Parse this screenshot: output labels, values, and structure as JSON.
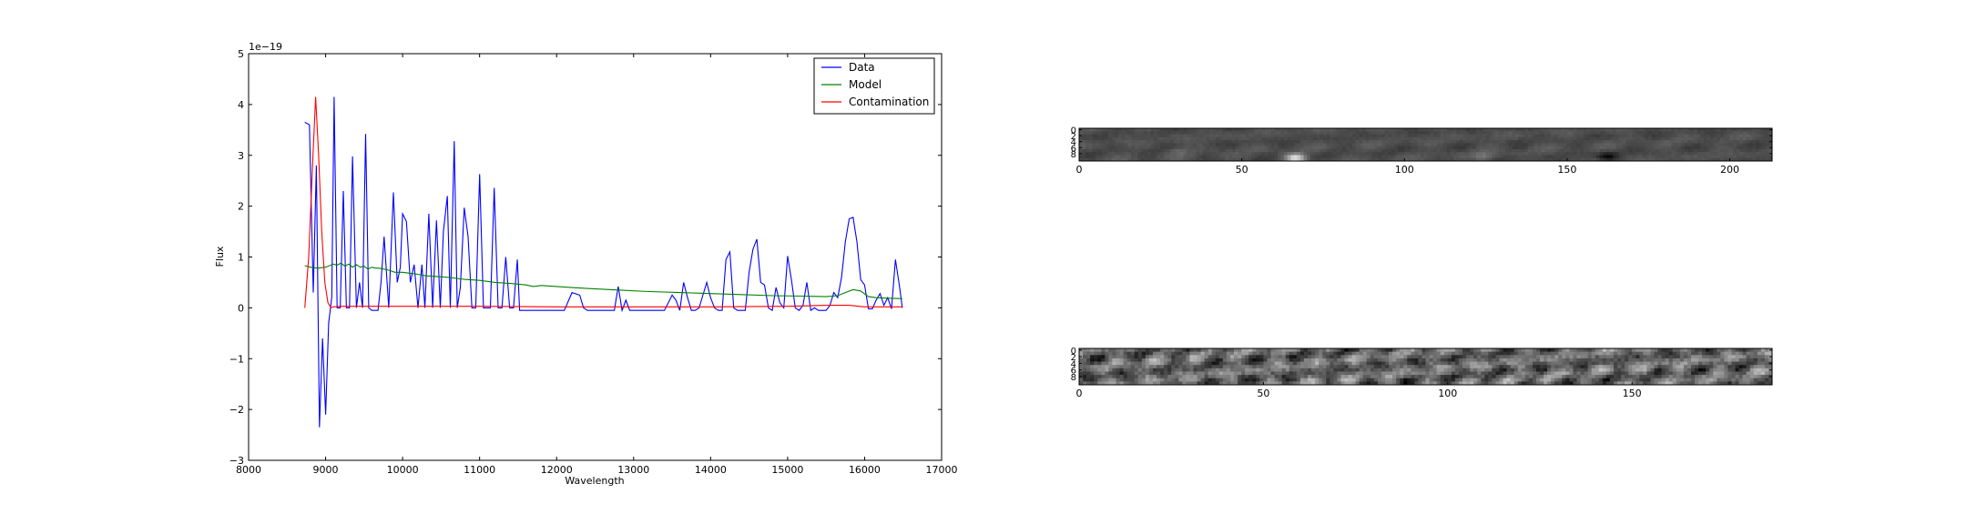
{
  "chart_data": [
    {
      "type": "line",
      "xlabel": "Wavelength",
      "ylabel": "Flux",
      "y_offset_label": "1e−19",
      "xlim": [
        8000,
        17000
      ],
      "ylim": [
        -3,
        5
      ],
      "xticks": [
        8000,
        9000,
        10000,
        11000,
        12000,
        13000,
        14000,
        15000,
        16000,
        17000
      ],
      "xtick_labels": [
        "8000",
        "9000",
        "10000",
        "11000",
        "12000",
        "13000",
        "14000",
        "15000",
        "16000",
        "17000"
      ],
      "yticks": [
        -3,
        -2,
        -1,
        0,
        1,
        2,
        3,
        4,
        5
      ],
      "ytick_labels": [
        "−3",
        "−2",
        "−1",
        "0",
        "1",
        "2",
        "3",
        "4",
        "5"
      ],
      "legend_position": "top-right",
      "grid": false,
      "series": [
        {
          "name": "Data",
          "color": "#0000ff",
          "x": [
            8730,
            8790,
            8840,
            8880,
            8920,
            8960,
            9000,
            9040,
            9080,
            9110,
            9150,
            9190,
            9230,
            9270,
            9310,
            9350,
            9400,
            9440,
            9480,
            9520,
            9560,
            9600,
            9640,
            9680,
            9720,
            9760,
            9820,
            9880,
            9930,
            9970,
            10000,
            10050,
            10100,
            10150,
            10200,
            10250,
            10290,
            10340,
            10390,
            10440,
            10490,
            10530,
            10580,
            10620,
            10670,
            10710,
            10750,
            10800,
            10850,
            10900,
            10950,
            11000,
            11050,
            11100,
            11140,
            11190,
            11240,
            11290,
            11340,
            11390,
            11440,
            11490,
            11520,
            11560,
            11610,
            11660,
            11700,
            11800,
            11900,
            12000,
            12100,
            12200,
            12300,
            12350,
            12400,
            12450,
            12500,
            12550,
            12600,
            12650,
            12700,
            12750,
            12800,
            12850,
            12900,
            12950,
            13000,
            13050,
            13100,
            13150,
            13200,
            13300,
            13400,
            13500,
            13550,
            13600,
            13650,
            13700,
            13750,
            13800,
            13850,
            13900,
            13950,
            14000,
            14050,
            14100,
            14150,
            14200,
            14250,
            14300,
            14350,
            14400,
            14450,
            14500,
            14550,
            14600,
            14650,
            14700,
            14750,
            14800,
            14850,
            14900,
            14950,
            15000,
            15050,
            15100,
            15150,
            15200,
            15250,
            15300,
            15350,
            15400,
            15450,
            15500,
            15550,
            15600,
            15650,
            15700,
            15750,
            15800,
            15850,
            15900,
            15950,
            16000,
            16050,
            16100,
            16150,
            16200,
            16250,
            16300,
            16350,
            16400,
            16450,
            16490
          ],
          "y": [
            3.65,
            3.6,
            0.3,
            2.8,
            -2.35,
            -0.6,
            -2.1,
            -0.3,
            0.2,
            4.15,
            0.0,
            0.0,
            2.3,
            0.0,
            0.0,
            2.98,
            0.0,
            0.5,
            0.0,
            3.42,
            0.0,
            -0.05,
            -0.05,
            -0.05,
            0.5,
            1.4,
            0.0,
            2.27,
            0.5,
            0.8,
            1.85,
            1.7,
            0.5,
            0.85,
            0.0,
            0.85,
            0.0,
            1.85,
            0.0,
            1.72,
            0.0,
            1.5,
            2.2,
            0.0,
            3.28,
            0.0,
            0.4,
            1.97,
            1.4,
            0.0,
            0.0,
            2.63,
            0.0,
            0.0,
            0.0,
            2.36,
            0.0,
            0.0,
            1.0,
            0.0,
            0.0,
            0.95,
            -0.05,
            -0.05,
            -0.05,
            -0.05,
            -0.05,
            -0.05,
            -0.05,
            -0.05,
            -0.05,
            0.3,
            0.25,
            0.0,
            -0.05,
            -0.05,
            -0.05,
            -0.05,
            -0.05,
            -0.05,
            -0.05,
            -0.05,
            0.42,
            -0.05,
            0.15,
            -0.05,
            -0.05,
            -0.05,
            -0.05,
            -0.05,
            -0.05,
            -0.05,
            -0.05,
            0.25,
            0.15,
            -0.05,
            0.5,
            0.2,
            -0.05,
            -0.05,
            0.0,
            0.25,
            0.5,
            0.2,
            0.0,
            -0.05,
            -0.05,
            0.95,
            1.1,
            0.0,
            -0.05,
            -0.05,
            -0.05,
            0.7,
            1.15,
            1.35,
            0.5,
            0.45,
            0.0,
            -0.05,
            0.4,
            0.1,
            0.0,
            1.02,
            0.55,
            0.0,
            -0.05,
            0.05,
            0.5,
            -0.05,
            0.0,
            -0.05,
            -0.05,
            -0.05,
            0.05,
            0.3,
            0.2,
            0.6,
            1.3,
            1.75,
            1.78,
            1.3,
            0.55,
            0.45,
            -0.02,
            -0.02,
            0.15,
            0.28,
            0.05,
            0.2,
            -0.02,
            0.95,
            0.45,
            0.0
          ]
        },
        {
          "name": "Model",
          "color": "#008000",
          "x": [
            8730,
            8800,
            8900,
            9000,
            9100,
            9150,
            9200,
            9250,
            9300,
            9350,
            9400,
            9450,
            9500,
            9550,
            9600,
            9650,
            9700,
            9800,
            9900,
            10000,
            10100,
            10200,
            10300,
            10400,
            10600,
            10800,
            11000,
            11200,
            11400,
            11600,
            11700,
            11800,
            12000,
            12400,
            12800,
            13200,
            13600,
            14000,
            14400,
            14800,
            15200,
            15500,
            15650,
            15750,
            15850,
            15950,
            16050,
            16150,
            16300,
            16490
          ],
          "y": [
            0.83,
            0.8,
            0.78,
            0.8,
            0.86,
            0.84,
            0.88,
            0.82,
            0.86,
            0.8,
            0.85,
            0.8,
            0.82,
            0.76,
            0.8,
            0.78,
            0.78,
            0.75,
            0.7,
            0.7,
            0.68,
            0.66,
            0.63,
            0.62,
            0.6,
            0.56,
            0.54,
            0.5,
            0.48,
            0.45,
            0.42,
            0.44,
            0.42,
            0.38,
            0.35,
            0.32,
            0.3,
            0.28,
            0.26,
            0.24,
            0.23,
            0.22,
            0.24,
            0.3,
            0.36,
            0.33,
            0.22,
            0.2,
            0.19,
            0.18
          ]
        },
        {
          "name": "Contamination",
          "color": "#ff0000",
          "x": [
            8730,
            8780,
            8830,
            8870,
            8910,
            8950,
            8990,
            9030,
            9070,
            9100,
            9200,
            9400,
            10000,
            11000,
            12000,
            13000,
            14000,
            15000,
            15500,
            15800,
            16000,
            16490
          ],
          "y": [
            0.0,
            1.0,
            2.8,
            4.15,
            3.0,
            1.5,
            0.5,
            0.1,
            0.0,
            0.02,
            0.03,
            0.03,
            0.03,
            0.03,
            0.02,
            0.02,
            0.02,
            0.03,
            0.05,
            0.05,
            0.02,
            0.02
          ]
        }
      ]
    },
    {
      "type": "heatmap",
      "colormap": "gray",
      "xlim": [
        0,
        213
      ],
      "ylim": [
        0,
        10
      ],
      "xtick_labels": [
        "0",
        "50",
        "100",
        "150",
        "200"
      ],
      "ytick_labels": [
        "0",
        "2",
        "4",
        "6",
        "8"
      ],
      "rows": 11,
      "cols": 213,
      "features": [
        {
          "x": 66,
          "y": 9.5,
          "level": 0.9
        },
        {
          "x": 124,
          "y": 9,
          "level": 0.45
        },
        {
          "x": 162,
          "y": 9,
          "level": 0.05
        },
        {
          "x": 30,
          "y": 7,
          "level": 0.4
        }
      ]
    },
    {
      "type": "heatmap",
      "colormap": "gray",
      "xlim": [
        0,
        188
      ],
      "ylim": [
        0,
        10
      ],
      "xtick_labels": [
        "0",
        "50",
        "100",
        "150"
      ],
      "ytick_labels": [
        "0",
        "2",
        "4",
        "6",
        "8"
      ],
      "rows": 11,
      "cols": 188
    }
  ]
}
